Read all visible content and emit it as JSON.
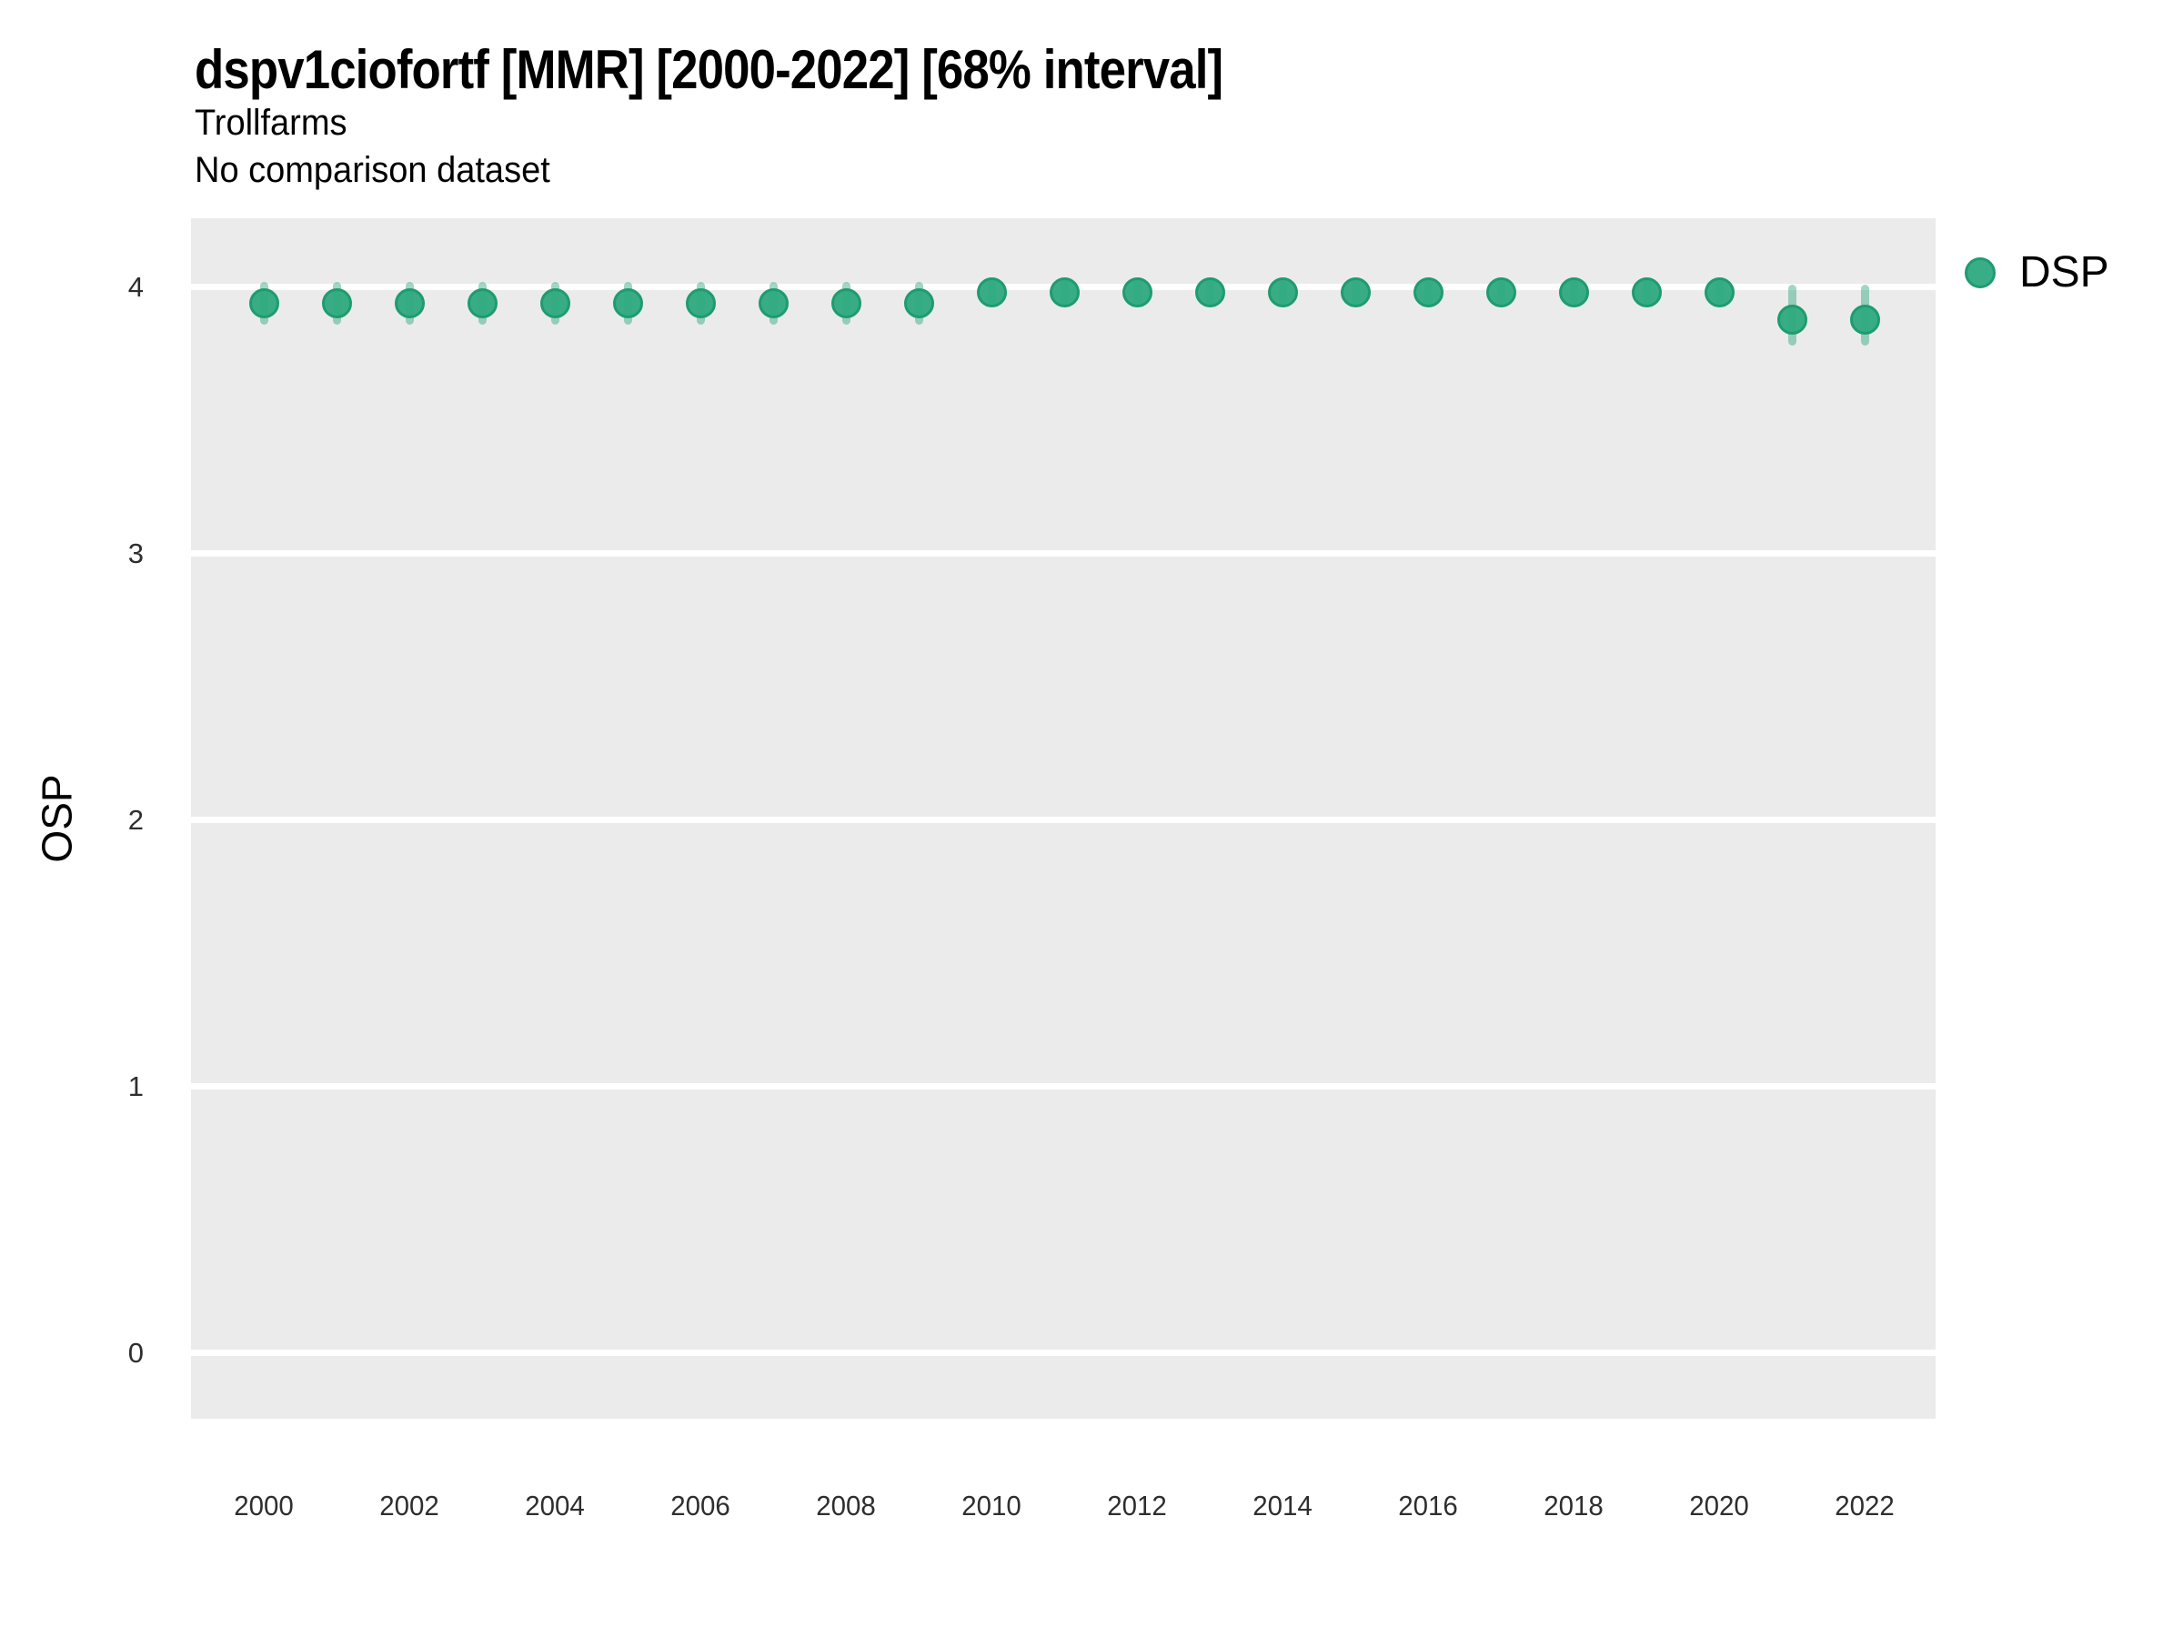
{
  "header": {
    "title": "dspv1ciofortf [MMR] [2000-2022] [68% interval]",
    "subtitle1": "Trollfarms",
    "subtitle2": "No comparison dataset"
  },
  "legend": {
    "label": "DSP",
    "position": "right"
  },
  "colors": {
    "marker_fill": "rgba(46,170,128,0.95)",
    "marker_stroke": "#1E9C6F",
    "error_bar": "rgba(44,167,125,0.45)",
    "panel_background": "#EBEBEB",
    "gridline": "#FFFFFF",
    "tick_text": "#2e2e2e"
  },
  "chart_data": {
    "type": "scatter",
    "title": "dspv1ciofortf [MMR] [2000-2022] [68% interval]",
    "subtitle": "Trollfarms",
    "comparison_note": "No comparison dataset",
    "xlabel": "",
    "ylabel": "OSP",
    "interval": "68%",
    "grid": "white major horizontal gridlines on gray panel",
    "legend_position": "right",
    "ylim": [
      -0.25,
      4.26
    ],
    "xlim": [
      1999,
      2023
    ],
    "yticks": [
      0,
      1,
      2,
      3,
      4
    ],
    "xticks": [
      2000,
      2002,
      2004,
      2006,
      2008,
      2010,
      2012,
      2014,
      2016,
      2018,
      2020,
      2022
    ],
    "x": [
      2000,
      2001,
      2002,
      2003,
      2004,
      2005,
      2006,
      2007,
      2008,
      2009,
      2010,
      2011,
      2012,
      2013,
      2014,
      2015,
      2016,
      2017,
      2018,
      2019,
      2020,
      2021,
      2022
    ],
    "series": [
      {
        "name": "DSP",
        "values": [
          3.94,
          3.94,
          3.94,
          3.94,
          3.94,
          3.94,
          3.94,
          3.94,
          3.94,
          3.94,
          3.98,
          3.98,
          3.98,
          3.98,
          3.98,
          3.98,
          3.98,
          3.98,
          3.98,
          3.98,
          3.98,
          3.88,
          3.88
        ],
        "lo": [
          3.86,
          3.86,
          3.86,
          3.86,
          3.86,
          3.86,
          3.86,
          3.86,
          3.86,
          3.86,
          3.93,
          3.93,
          3.93,
          3.93,
          3.93,
          3.93,
          3.93,
          3.93,
          3.93,
          3.93,
          3.93,
          3.78,
          3.78
        ],
        "hi": [
          4.02,
          4.02,
          4.02,
          4.02,
          4.02,
          4.02,
          4.02,
          4.02,
          4.02,
          4.02,
          4.03,
          4.03,
          4.03,
          4.03,
          4.03,
          4.03,
          4.03,
          4.03,
          4.03,
          4.03,
          4.03,
          4.01,
          4.01
        ]
      }
    ]
  }
}
